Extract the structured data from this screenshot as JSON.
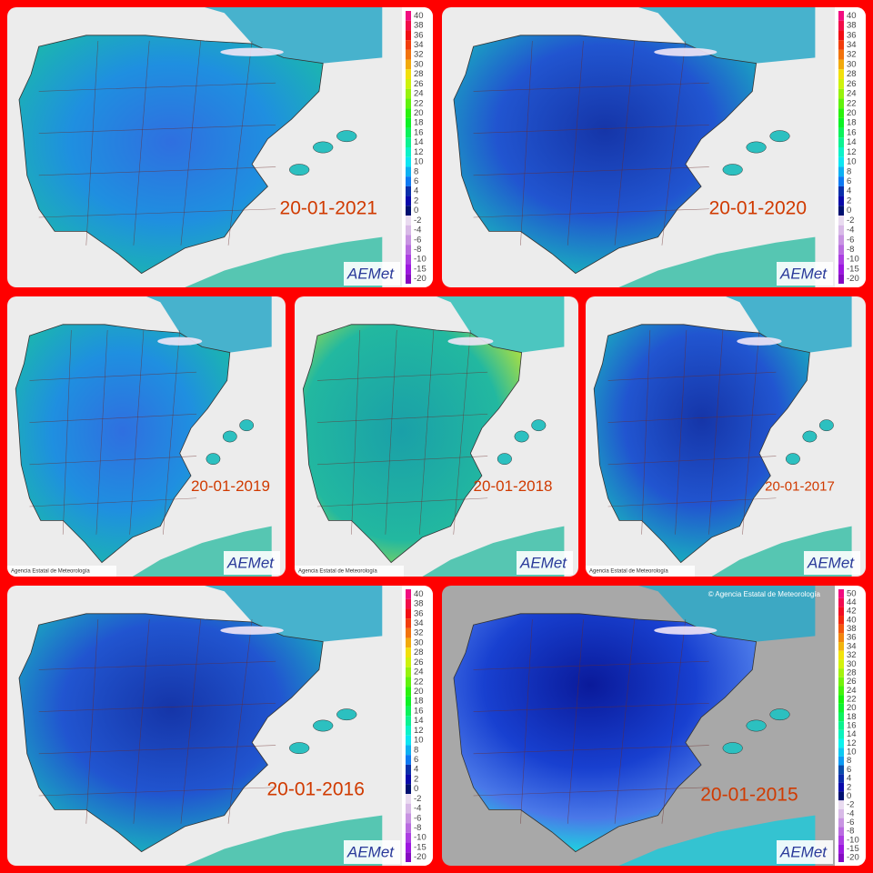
{
  "panels": [
    {
      "date": "20-01-2021"
    },
    {
      "date": "20-01-2020"
    },
    {
      "date": "20-01-2019"
    },
    {
      "date": "20-01-2018"
    },
    {
      "date": "20-01-2017"
    },
    {
      "date": "20-01-2016"
    },
    {
      "date": "20-01-2015"
    }
  ],
  "scale_short": [
    40,
    38,
    36,
    34,
    32,
    30,
    28,
    26,
    24,
    22,
    20,
    18,
    16,
    14,
    12,
    10,
    8,
    6,
    4,
    2,
    0,
    -2,
    -4,
    -6,
    -8,
    -10,
    -15,
    -20
  ],
  "scale_long": [
    50,
    44,
    42,
    40,
    38,
    36,
    34,
    32,
    30,
    28,
    26,
    24,
    22,
    20,
    18,
    16,
    14,
    12,
    10,
    8,
    6,
    4,
    2,
    0,
    -2,
    -4,
    -6,
    -8,
    -10,
    -15,
    -20
  ],
  "logo": "AEMet",
  "credit": "Agencia Estatal de Meteorología",
  "copyright": "© Agencia Estatal de Meteorología"
}
